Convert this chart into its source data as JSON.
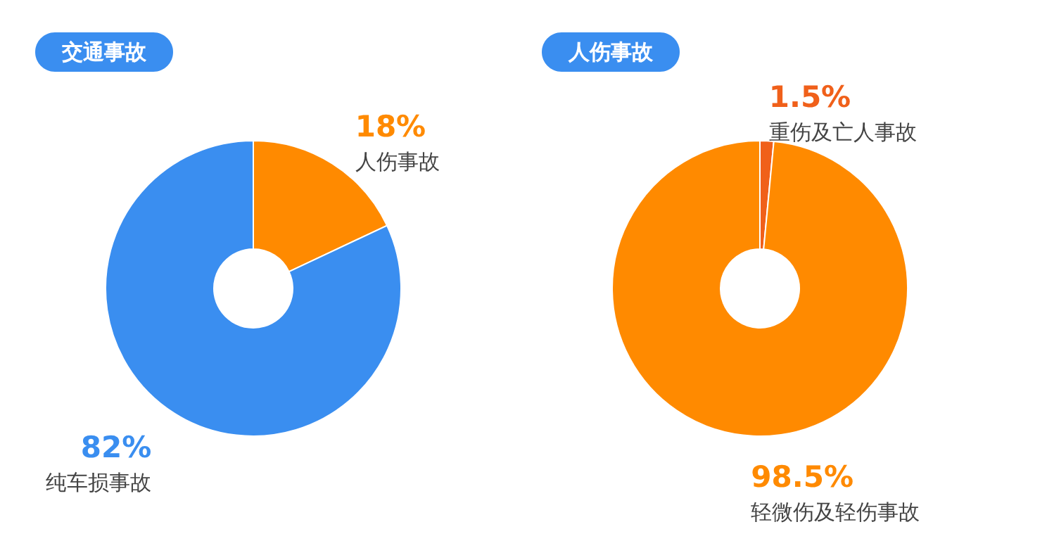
{
  "chart_data": [
    {
      "type": "donut",
      "title": "交通事故",
      "categories": [
        "人伤事故",
        "纯车损事故"
      ],
      "values": [
        18,
        82
      ],
      "colors": [
        "#ff8a00",
        "#3a8ef0"
      ],
      "value_labels": [
        "18%",
        "82%"
      ]
    },
    {
      "type": "donut",
      "title": "人伤事故",
      "categories": [
        "重伤及亡人事故",
        "轻微伤及轻伤事故"
      ],
      "values": [
        1.5,
        98.5
      ],
      "colors": [
        "#f0601a",
        "#ff8a00"
      ],
      "value_labels": [
        "1.5%",
        "98.5%"
      ]
    }
  ]
}
